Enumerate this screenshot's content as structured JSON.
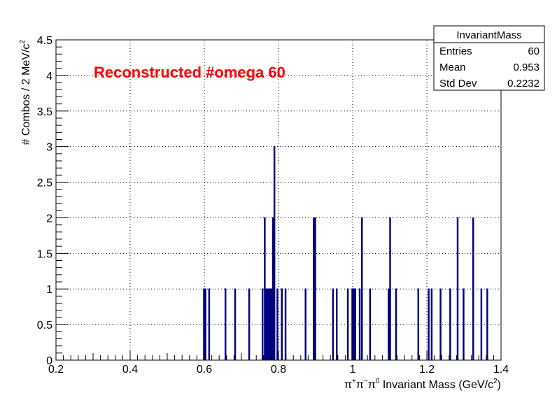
{
  "chart_data": {
    "type": "bar",
    "histogram_name": "InvariantMass",
    "overlay_text": "Reconstructed #omega 60",
    "xlabel": "π⁺π⁻π⁰ Invariant Mass (GeV/c²)",
    "xlabel_parts": [
      "π",
      "+",
      "π",
      "−",
      "π",
      "0",
      " Invariant Mass (GeV/c",
      "2",
      ")"
    ],
    "ylabel": "# Combos / 2 MeV/c²",
    "ylabel_parts": [
      "# Combos / 2 MeV/c",
      "2"
    ],
    "xlim": [
      0.2,
      1.4
    ],
    "ylim": [
      0,
      4.5
    ],
    "bin_width": 0.002,
    "grid": true,
    "x_ticks": [
      "0.2",
      "0.4",
      "0.6",
      "0.8",
      "1",
      "1.2",
      "1.4"
    ],
    "y_ticks": [
      "0",
      "0.5",
      "1",
      "1.5",
      "2",
      "2.5",
      "3",
      "3.5",
      "4",
      "4.5"
    ],
    "bins": [
      {
        "x": 0.598,
        "y": 1
      },
      {
        "x": 0.602,
        "y": 1
      },
      {
        "x": 0.612,
        "y": 1
      },
      {
        "x": 0.656,
        "y": 1
      },
      {
        "x": 0.682,
        "y": 1
      },
      {
        "x": 0.72,
        "y": 1
      },
      {
        "x": 0.756,
        "y": 1
      },
      {
        "x": 0.762,
        "y": 2
      },
      {
        "x": 0.766,
        "y": 1
      },
      {
        "x": 0.77,
        "y": 1
      },
      {
        "x": 0.774,
        "y": 1
      },
      {
        "x": 0.776,
        "y": 1
      },
      {
        "x": 0.78,
        "y": 1
      },
      {
        "x": 0.784,
        "y": 2
      },
      {
        "x": 0.788,
        "y": 3
      },
      {
        "x": 0.796,
        "y": 1
      },
      {
        "x": 0.808,
        "y": 1
      },
      {
        "x": 0.818,
        "y": 1
      },
      {
        "x": 0.872,
        "y": 1
      },
      {
        "x": 0.894,
        "y": 2
      },
      {
        "x": 0.898,
        "y": 2
      },
      {
        "x": 0.946,
        "y": 1
      },
      {
        "x": 0.956,
        "y": 1
      },
      {
        "x": 0.986,
        "y": 1
      },
      {
        "x": 0.998,
        "y": 1
      },
      {
        "x": 1.002,
        "y": 1
      },
      {
        "x": 1.006,
        "y": 1
      },
      {
        "x": 1.018,
        "y": 1
      },
      {
        "x": 1.024,
        "y": 2
      },
      {
        "x": 1.046,
        "y": 1
      },
      {
        "x": 1.096,
        "y": 1
      },
      {
        "x": 1.1,
        "y": 2
      },
      {
        "x": 1.116,
        "y": 1
      },
      {
        "x": 1.176,
        "y": 1
      },
      {
        "x": 1.204,
        "y": 1
      },
      {
        "x": 1.212,
        "y": 1
      },
      {
        "x": 1.236,
        "y": 1
      },
      {
        "x": 1.262,
        "y": 1
      },
      {
        "x": 1.282,
        "y": 2
      },
      {
        "x": 1.298,
        "y": 1
      },
      {
        "x": 1.324,
        "y": 2
      },
      {
        "x": 1.346,
        "y": 1
      },
      {
        "x": 1.362,
        "y": 1
      }
    ],
    "stats": {
      "title": "InvariantMass",
      "rows": [
        {
          "label": "Entries",
          "value": "60"
        },
        {
          "label": "Mean",
          "value": "0.953"
        },
        {
          "label": "Std Dev",
          "value": "0.2232"
        }
      ]
    }
  }
}
